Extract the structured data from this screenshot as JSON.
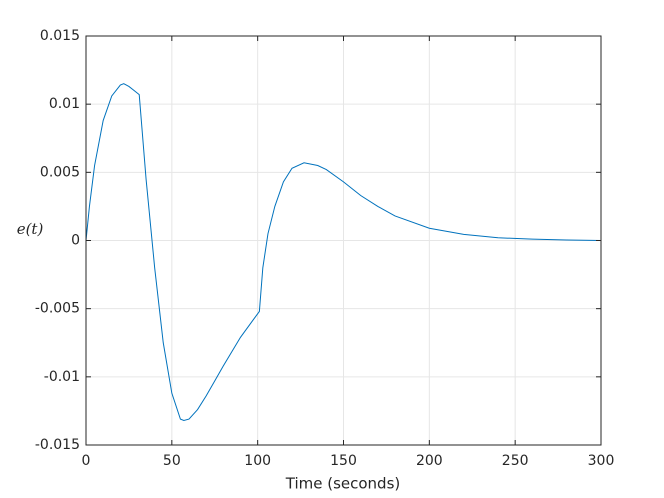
{
  "chart_data": {
    "type": "line",
    "xlabel": "Time (seconds)",
    "ylabel": "e(t)",
    "x": [
      0,
      2,
      5,
      10,
      15,
      20,
      22,
      25,
      28,
      31,
      35,
      40,
      45,
      50,
      55,
      57,
      60,
      65,
      70,
      80,
      90,
      101,
      103,
      106,
      110,
      115,
      120,
      127,
      135,
      140,
      150,
      160,
      170,
      180,
      200,
      220,
      240,
      260,
      280,
      300
    ],
    "series": [
      {
        "color": "#0072bd",
        "values": [
          0,
          0.0025,
          0.0055,
          0.0088,
          0.0106,
          0.0114,
          0.0115,
          0.0113,
          0.011,
          0.0107,
          0.0045,
          -0.002,
          -0.0075,
          -0.0112,
          -0.0131,
          -0.0132,
          -0.0131,
          -0.0124,
          -0.0114,
          -0.0092,
          -0.0071,
          -0.0052,
          -0.002,
          0.0005,
          0.0025,
          0.0043,
          0.0053,
          0.0057,
          0.0055,
          0.0052,
          0.0043,
          0.0033,
          0.0025,
          0.0018,
          0.0009,
          0.00045,
          0.0002,
          0.0001,
          4e-05,
          0
        ]
      }
    ],
    "xlim": [
      0,
      300
    ],
    "xticks": [
      0,
      50,
      100,
      150,
      200,
      250,
      300
    ],
    "ylim": [
      -0.015,
      0.015
    ],
    "yticks": [
      -0.015,
      -0.01,
      -0.005,
      0,
      0.005,
      0.01,
      0.015
    ],
    "grid": true
  }
}
